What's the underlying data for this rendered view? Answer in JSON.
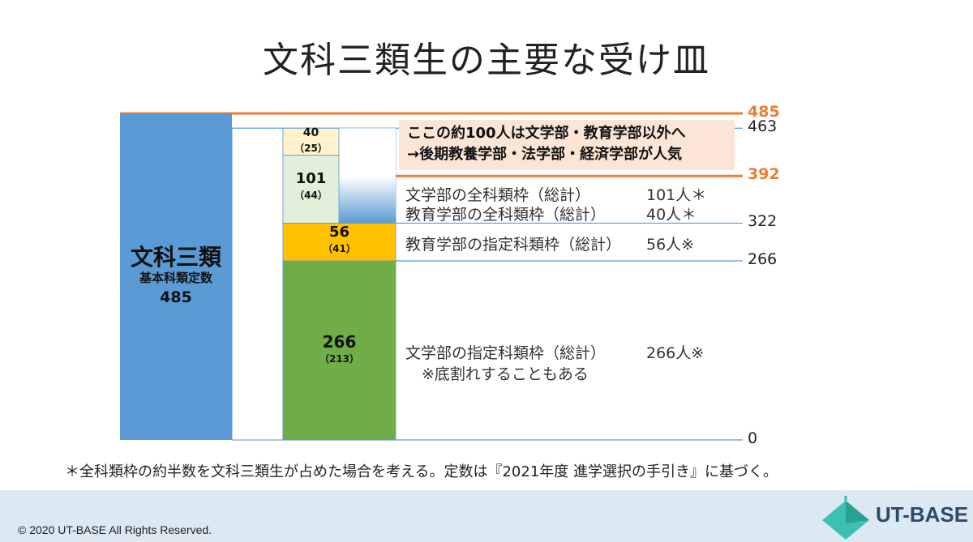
{
  "title": "文科三類生の主要な受け皿",
  "chart_data": {
    "type": "bar",
    "ylim": [
      0,
      485
    ],
    "y_ticks": [
      {
        "value": 485,
        "label": "485",
        "color": "#ed7d31"
      },
      {
        "value": 463,
        "label": "463",
        "color": "#222222"
      },
      {
        "value": 392,
        "label": "392",
        "color": "#ed7d31"
      },
      {
        "value": 322,
        "label": "322",
        "color": "#222222"
      },
      {
        "value": 266,
        "label": "266",
        "color": "#222222"
      },
      {
        "value": 0,
        "label": "0",
        "color": "#222222"
      }
    ],
    "total_bar": {
      "title": "文科三類",
      "subtitle": "基本科類定数",
      "value": 485,
      "color": "#5b9bd5"
    },
    "stack": [
      {
        "from": 0,
        "to": 266,
        "label": "266",
        "sub": "（213）",
        "color": "#70ad47"
      },
      {
        "from": 266,
        "to": 322,
        "label": "56",
        "sub": "（41）",
        "color": "#ffc000"
      },
      {
        "from": 322,
        "to": 423,
        "label": "101",
        "sub": "（44）",
        "color": "#e2efda"
      },
      {
        "from": 423,
        "to": 463,
        "label": "40",
        "sub": "（25）",
        "color": "#fff2cc"
      }
    ],
    "gap_bar": {
      "from": 322,
      "to": 392
    },
    "annotations": [
      {
        "line1": "文学部の全科類枠（総計）",
        "value1": "101人＊",
        "line2": "教育学部の全科類枠（総計）",
        "value2": "40人＊"
      },
      {
        "line1": "教育学部の指定科類枠（総計）",
        "value1": "56人※"
      },
      {
        "line1": "文学部の指定科類枠（総計）",
        "value1": "266人※",
        "line2": "※底割れすることもある"
      }
    ],
    "callout": {
      "line1": "ここの約100人は文学部・教育学部以外へ",
      "line2": "→後期教養学部・法学部・経済学部が人気"
    }
  },
  "note": "＊全科類枠の約半数を文科三類生が占めた場合を考える。定数は『2021年度 進学選択の手引き』に基づく。",
  "footer": {
    "copyright": "© 2020 UT-BASE All Rights Reserved.",
    "logo": "UT-BASE"
  },
  "colors": {
    "accent": "#ed7d31",
    "footer_bg": "#dce8f2"
  }
}
